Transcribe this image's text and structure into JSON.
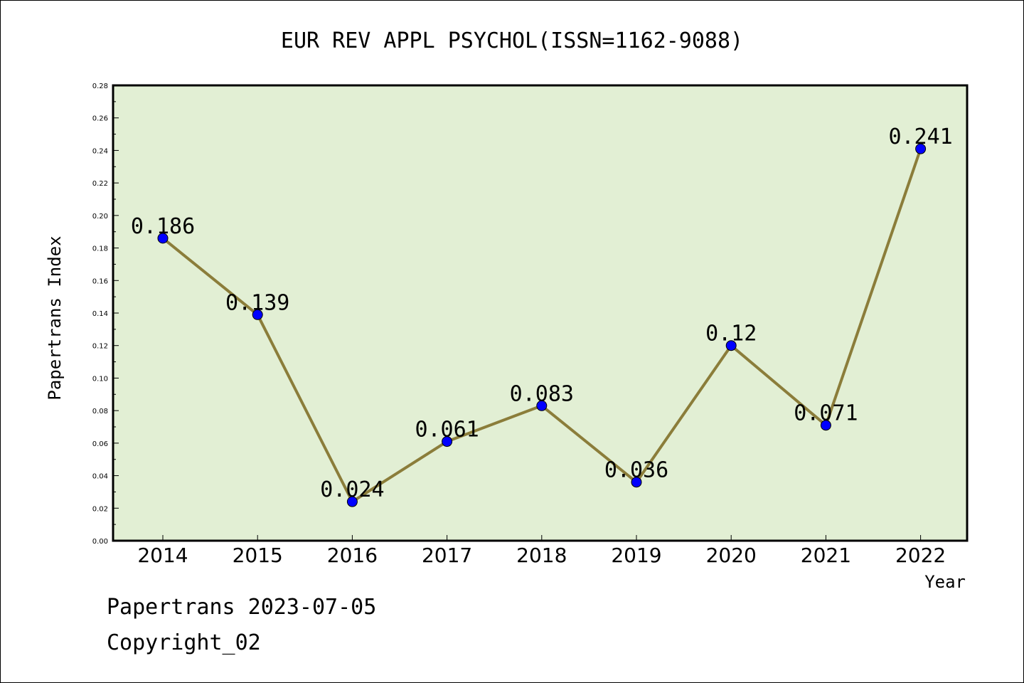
{
  "chart_data": {
    "type": "line",
    "title": "EUR REV APPL PSYCHOL(ISSN=1162-9088)",
    "xlabel": "Year",
    "ylabel": "Papertrans Index",
    "categories": [
      "2014",
      "2015",
      "2016",
      "2017",
      "2018",
      "2019",
      "2020",
      "2021",
      "2022"
    ],
    "values": [
      0.186,
      0.139,
      0.024,
      0.061,
      0.083,
      0.036,
      0.12,
      0.071,
      0.241
    ],
    "data_labels": [
      "0.186",
      "0.139",
      "0.024",
      "0.061",
      "0.083",
      "0.036",
      "0.12",
      "0.071",
      "0.241"
    ],
    "ylim": [
      0,
      0.28
    ],
    "yticks": [
      "0.00",
      "0.02",
      "0.04",
      "0.06",
      "0.08",
      "0.10",
      "0.12",
      "0.14",
      "0.16",
      "0.18",
      "0.20",
      "0.22",
      "0.24",
      "0.26",
      "0.28"
    ],
    "grid": false,
    "colors": {
      "plot_background": "#e2efd4",
      "line": "#8b7d3a",
      "marker": "#0000ff"
    }
  },
  "footer": {
    "line1": "Papertrans 2023-07-05",
    "line2": "Copyright_02"
  }
}
